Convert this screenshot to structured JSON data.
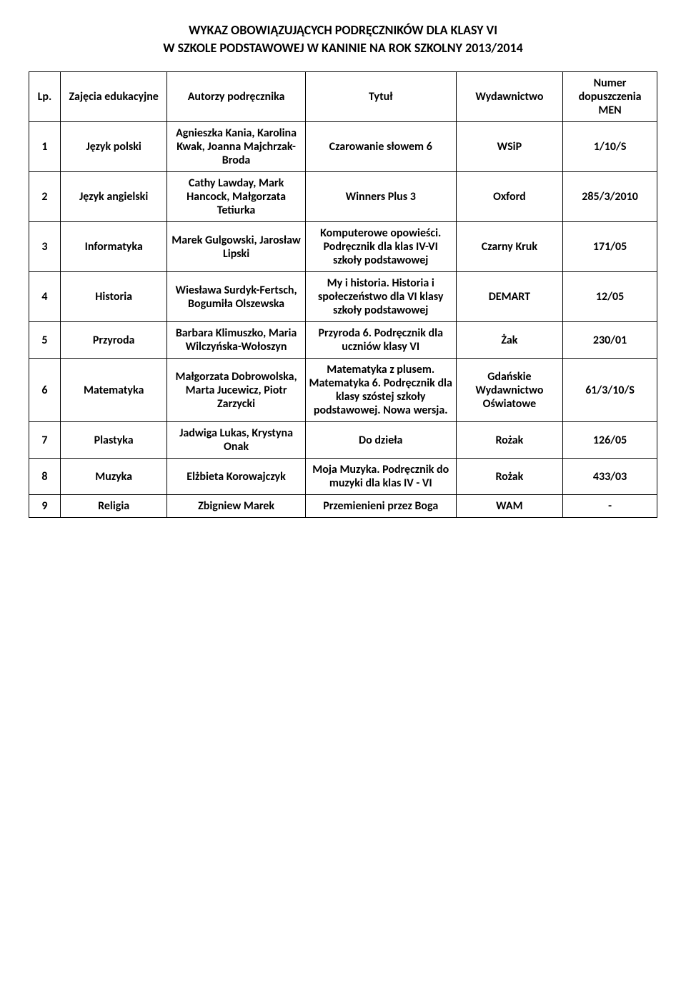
{
  "header": {
    "line1": "WYKAZ OBOWIĄZUJĄCYCH PODRĘCZNIKÓW DLA KLASY VI",
    "line2": "W SZKOLE PODSTAWOWEJ W KANINIE NA ROK SZKOLNY 2013/2014"
  },
  "columns": [
    "Lp.",
    "Zajęcia edukacyjne",
    "Autorzy podręcznika",
    "Tytuł",
    "Wydawnictwo",
    "Numer dopuszczenia MEN"
  ],
  "rows": [
    {
      "lp": "1",
      "subject": "Język polski",
      "authors": "Agnieszka Kania, Karolina Kwak, Joanna Majchrzak-Broda",
      "title": "Czarowanie słowem 6",
      "publisher": "WSiP",
      "number": "1/10/S"
    },
    {
      "lp": "2",
      "subject": "Język angielski",
      "authors": "Cathy Lawday, Mark Hancock, Małgorzata Tetiurka",
      "title": "Winners Plus 3",
      "publisher": "Oxford",
      "number": "285/3/2010"
    },
    {
      "lp": "3",
      "subject": "Informatyka",
      "authors": "Marek Gulgowski, Jarosław Lipski",
      "title": "Komputerowe opowieści. Podręcznik dla klas IV-VI szkoły podstawowej",
      "publisher": "Czarny Kruk",
      "number": "171/05"
    },
    {
      "lp": "4",
      "subject": "Historia",
      "authors": "Wiesława Surdyk-Fertsch, Bogumiła Olszewska",
      "title": "My i historia. Historia i społeczeństwo dla VI klasy szkoły podstawowej",
      "publisher": "DEMART",
      "number": "12/05"
    },
    {
      "lp": "5",
      "subject": "Przyroda",
      "authors": "Barbara Klimuszko, Maria Wilczyńska-Wołoszyn",
      "title": "Przyroda 6. Podręcznik dla uczniów klasy VI",
      "publisher": "Żak",
      "number": "230/01"
    },
    {
      "lp": "6",
      "subject": "Matematyka",
      "authors": "Małgorzata Dobrowolska, Marta Jucewicz, Piotr Zarzycki",
      "title": "Matematyka z plusem. Matematyka 6. Podręcznik dla klasy szóstej szkoły podstawowej. Nowa wersja.",
      "publisher": "Gdańskie Wydawnictwo Oświatowe",
      "number": "61/3/10/S"
    },
    {
      "lp": "7",
      "subject": "Plastyka",
      "authors": "Jadwiga Lukas, Krystyna Onak",
      "title": "Do dzieła",
      "publisher": "Rożak",
      "number": "126/05"
    },
    {
      "lp": "8",
      "subject": "Muzyka",
      "authors": "Elżbieta Korowajczyk",
      "title": "Moja Muzyka. Podręcznik do muzyki dla klas IV - VI",
      "publisher": "Rożak",
      "number": "433/03"
    },
    {
      "lp": "9",
      "subject": "Religia",
      "authors": "Zbigniew Marek",
      "title": "Przemienieni przez Boga",
      "publisher": "WAM",
      "number": "-"
    }
  ],
  "style": {
    "font_family": "Calibri, Arial, sans-serif",
    "header_fontsize": 18,
    "cell_fontsize": 16,
    "text_color": "#000000",
    "background_color": "#ffffff",
    "border_color": "#000000",
    "column_widths_pct": [
      5,
      17,
      22,
      24,
      17,
      15
    ]
  }
}
